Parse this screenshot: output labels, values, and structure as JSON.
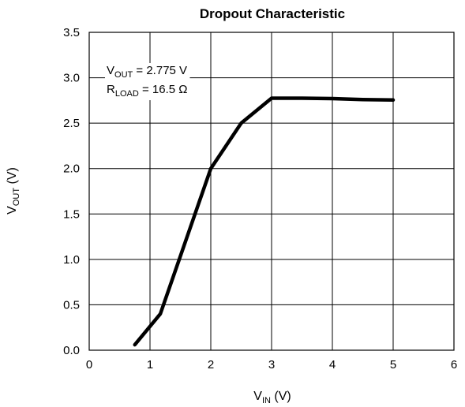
{
  "chart_data": {
    "type": "line",
    "title": "Dropout Characteristic",
    "xlabel": {
      "main": "V",
      "sub": "IN",
      "unit": " (V)"
    },
    "ylabel": {
      "main": "V",
      "sub": "OUT",
      "unit": " (V)"
    },
    "xlim": [
      0,
      6
    ],
    "ylim": [
      0,
      3.5
    ],
    "xticks": [
      "0",
      "1",
      "2",
      "3",
      "4",
      "5",
      "6"
    ],
    "yticks": [
      "0.0",
      "0.5",
      "1.0",
      "1.5",
      "2.0",
      "2.5",
      "3.0",
      "3.5"
    ],
    "grid": true,
    "annotations": [
      {
        "main": "V",
        "sub": "OUT",
        "rest": " = 2.775 V"
      },
      {
        "main": "R",
        "sub": "LOAD",
        "rest": " = 16.5 Ω"
      }
    ],
    "series": [
      {
        "x": [
          0.75,
          1.17,
          2.0,
          2.5,
          3.0,
          3.5,
          4.0,
          4.5,
          5.0
        ],
        "y": [
          0.06,
          0.4,
          2.0,
          2.5,
          2.775,
          2.775,
          2.77,
          2.76,
          2.755
        ],
        "color": "#000000"
      }
    ]
  }
}
